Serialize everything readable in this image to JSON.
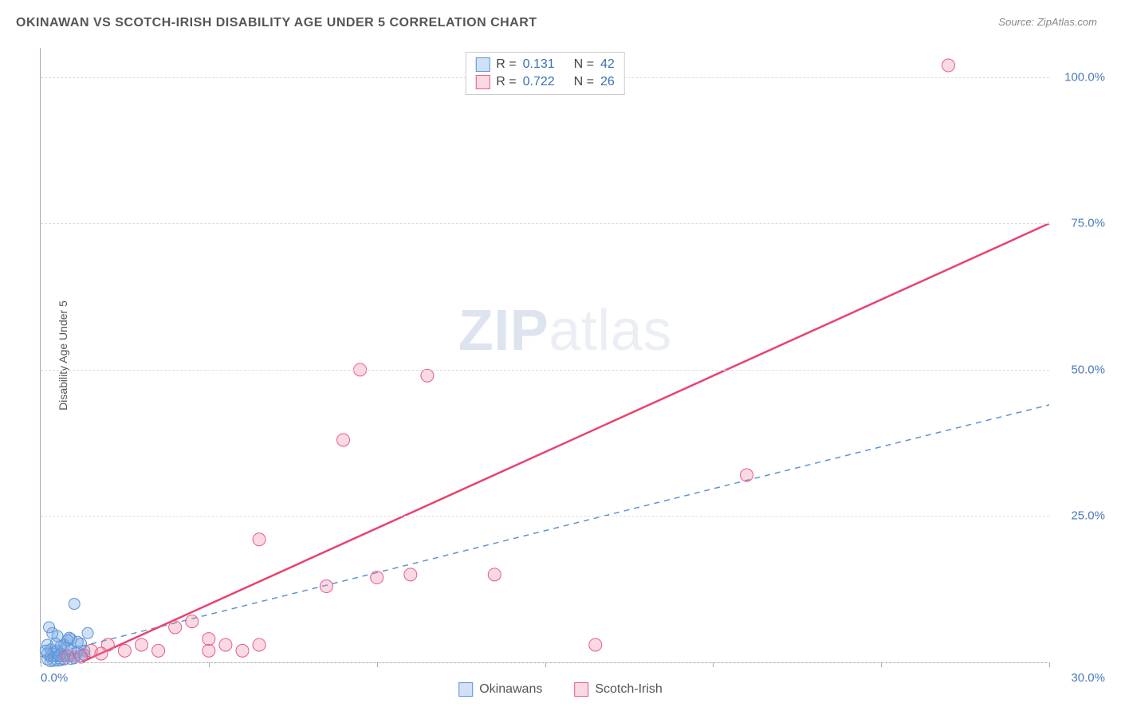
{
  "title": "OKINAWAN VS SCOTCH-IRISH DISABILITY AGE UNDER 5 CORRELATION CHART",
  "source_label": "Source:",
  "source_value": "ZipAtlas.com",
  "y_axis_label": "Disability Age Under 5",
  "watermark_bold": "ZIP",
  "watermark_light": "atlas",
  "chart": {
    "type": "scatter",
    "xlim": [
      0,
      30
    ],
    "ylim": [
      0,
      105
    ],
    "x_ticks": [
      0,
      5,
      10,
      15,
      20,
      25,
      30
    ],
    "x_tick_labels": {
      "0": "0.0%",
      "30": "30.0%"
    },
    "y_ticks": [
      25,
      50,
      75,
      100
    ],
    "y_tick_labels": [
      "25.0%",
      "50.0%",
      "75.0%",
      "100.0%"
    ],
    "grid_lines_y": [
      0,
      25,
      50,
      75,
      100
    ],
    "grid_color": "#dddddd",
    "background_color": "#ffffff",
    "axis_color": "#aaaaaa",
    "tick_label_color": "#4a7ab8",
    "series": [
      {
        "name": "Okinawans",
        "marker_color_fill": "rgba(120,170,230,0.35)",
        "marker_color_stroke": "#5a93d4",
        "marker_radius": 7,
        "trend_line_color": "#5a93d4",
        "trend_line_style": "dashed",
        "trend_line_width": 1.5,
        "trend": {
          "x0": 0,
          "y0": 1,
          "x1": 30,
          "y1": 44
        },
        "R": "0.131",
        "N": "42",
        "points": [
          [
            0.2,
            0.5
          ],
          [
            0.3,
            1
          ],
          [
            0.4,
            0.3
          ],
          [
            0.5,
            2
          ],
          [
            0.5,
            0.8
          ],
          [
            0.6,
            1.5
          ],
          [
            0.7,
            3
          ],
          [
            0.7,
            0.5
          ],
          [
            0.8,
            2.5
          ],
          [
            0.9,
            4
          ],
          [
            1.0,
            10
          ],
          [
            1.0,
            1
          ],
          [
            1.1,
            3.5
          ],
          [
            1.2,
            0.8
          ],
          [
            1.3,
            2
          ],
          [
            1.4,
            5
          ],
          [
            0.3,
            0.2
          ],
          [
            0.4,
            1.8
          ],
          [
            0.6,
            0.4
          ],
          [
            0.8,
            1.2
          ],
          [
            0.2,
            3
          ],
          [
            0.5,
            4.5
          ],
          [
            0.9,
            0.6
          ],
          [
            1.1,
            1.8
          ],
          [
            0.3,
            2.2
          ],
          [
            0.7,
            1.0
          ],
          [
            1.2,
            3.2
          ],
          [
            0.4,
            0.9
          ],
          [
            0.6,
            2.8
          ],
          [
            0.8,
            3.8
          ],
          [
            0.2,
            1.5
          ],
          [
            0.5,
            0.3
          ],
          [
            0.9,
            2.1
          ],
          [
            1.0,
            0.7
          ],
          [
            1.3,
            1.3
          ],
          [
            0.35,
            5
          ],
          [
            0.25,
            6
          ],
          [
            0.15,
            2
          ],
          [
            0.45,
            3.2
          ],
          [
            0.55,
            1.1
          ],
          [
            0.65,
            0.6
          ],
          [
            0.85,
            4.2
          ]
        ]
      },
      {
        "name": "Scotch-Irish",
        "marker_color_fill": "rgba(240,130,160,0.30)",
        "marker_color_stroke": "#e85a8a",
        "marker_radius": 8,
        "trend_line_color": "#e8436f",
        "trend_line_style": "solid",
        "trend_line_width": 2.5,
        "trend": {
          "x0": 1.2,
          "y0": 0,
          "x1": 30,
          "y1": 75
        },
        "R": "0.722",
        "N": "26",
        "points": [
          [
            27,
            102
          ],
          [
            21,
            32
          ],
          [
            13.5,
            15
          ],
          [
            11.5,
            49
          ],
          [
            9.5,
            50
          ],
          [
            9,
            38
          ],
          [
            11,
            15
          ],
          [
            10,
            14.5
          ],
          [
            8.5,
            13
          ],
          [
            6.5,
            21
          ],
          [
            6,
            2
          ],
          [
            6.5,
            3
          ],
          [
            5,
            2
          ],
          [
            4.5,
            7
          ],
          [
            4,
            6
          ],
          [
            3.5,
            2
          ],
          [
            3,
            3
          ],
          [
            2.5,
            2
          ],
          [
            2,
            3
          ],
          [
            1.5,
            2
          ],
          [
            1.8,
            1.5
          ],
          [
            1.2,
            1
          ],
          [
            0.8,
            1
          ],
          [
            16.5,
            3
          ],
          [
            5.5,
            3
          ],
          [
            5,
            4
          ]
        ]
      }
    ]
  },
  "legend_top_rows": [
    {
      "swatch_fill": "rgba(120,170,230,0.35)",
      "swatch_stroke": "#5a93d4",
      "R": "0.131",
      "N": "42"
    },
    {
      "swatch_fill": "rgba(240,130,160,0.30)",
      "swatch_stroke": "#e85a8a",
      "R": "0.722",
      "N": "26"
    }
  ],
  "legend_top_labels": {
    "R": "R  =",
    "N": "N  ="
  },
  "legend_bottom_items": [
    {
      "swatch_fill": "rgba(120,170,230,0.35)",
      "swatch_stroke": "#5a93d4",
      "label": "Okinawans"
    },
    {
      "swatch_fill": "rgba(240,130,160,0.30)",
      "swatch_stroke": "#e85a8a",
      "label": "Scotch-Irish"
    }
  ]
}
